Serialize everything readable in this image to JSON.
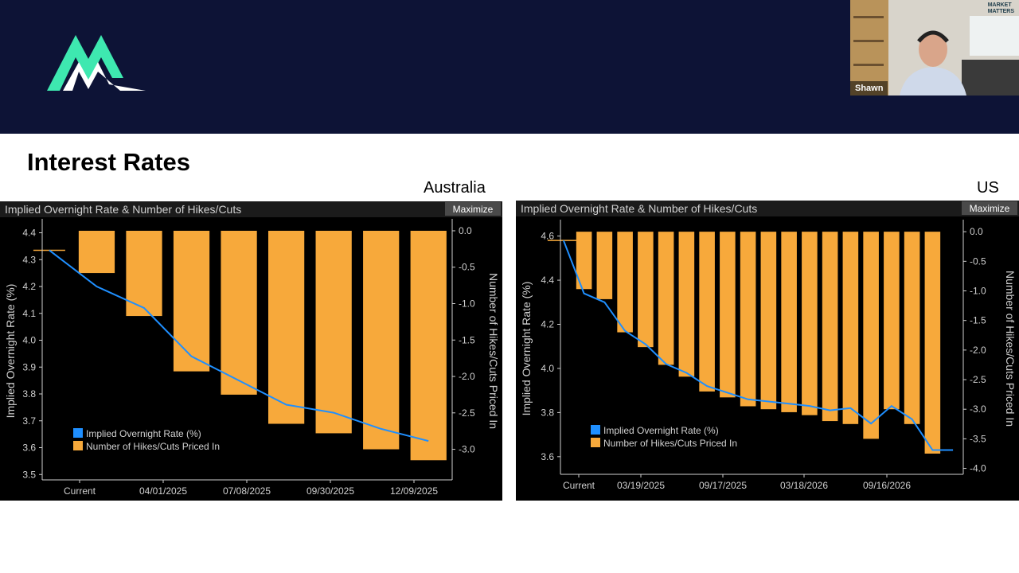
{
  "page": {
    "title": "Interest Rates"
  },
  "video": {
    "name": "Shawn",
    "brand_line1": "MARKET",
    "brand_line2": "MATTERS"
  },
  "colors": {
    "banner": "#0d1336",
    "bar": "#f7a93b",
    "line": "#1f8fff",
    "logo": "#3ee8b0"
  },
  "chart_data": [
    {
      "region": "Australia",
      "type": "bar+line",
      "title": "Implied Overnight Rate & Number of Hikes/Cuts",
      "button": "Maximize",
      "ylabel_left": "Implied Overnight Rate (%)",
      "ylabel_right": "Number of Hikes/Cuts Priced In",
      "x_tick_labels": [
        "Current",
        "04/01/2025",
        "07/08/2025",
        "09/30/2025",
        "12/09/2025"
      ],
      "y_left_ticks": [
        4.4,
        4.3,
        4.2,
        4.1,
        4.0,
        3.9,
        3.8,
        3.7,
        3.6,
        3.5
      ],
      "y_right_ticks": [
        0.0,
        -0.5,
        -1.0,
        -1.5,
        -2.0,
        -2.5,
        -3.0
      ],
      "ylim_left": [
        3.48,
        4.44
      ],
      "ylim_right": [
        -3.42,
        0.12
      ],
      "series": [
        {
          "name": "Implied Overnight Rate (%)",
          "kind": "line",
          "x": [
            0,
            1,
            2,
            3,
            4,
            5,
            6,
            7,
            8
          ],
          "values": [
            4.335,
            4.2,
            4.12,
            3.94,
            3.85,
            3.76,
            3.73,
            3.67,
            3.625
          ]
        },
        {
          "name": "Number of Hikes/Cuts Priced In",
          "kind": "bar",
          "x": [
            1,
            2,
            3,
            4,
            5,
            6,
            7,
            8
          ],
          "values": [
            -0.58,
            -1.17,
            -1.93,
            -2.25,
            -2.65,
            -2.78,
            -3.0,
            -3.15
          ]
        }
      ],
      "legend": [
        "Implied Overnight Rate (%)",
        "Number of Hikes/Cuts Priced In"
      ],
      "legend_position": "bottom-left"
    },
    {
      "region": "US",
      "type": "bar+line",
      "title": "Implied Overnight Rate & Number of Hikes/Cuts",
      "button": "Maximize",
      "ylabel_left": "Implied Overnight Rate (%)",
      "ylabel_right": "Number of Hikes/Cuts Priced In",
      "x_tick_labels": [
        "Current",
        "03/19/2025",
        "09/17/2025",
        "03/18/2026",
        "09/16/2026"
      ],
      "y_left_ticks": [
        4.6,
        4.4,
        4.2,
        4.0,
        3.8,
        3.6
      ],
      "y_right_ticks": [
        0.0,
        -0.5,
        -1.0,
        -1.5,
        -2.0,
        -2.5,
        -3.0,
        -3.5,
        -4.0
      ],
      "ylim_left": [
        3.52,
        4.66
      ],
      "ylim_right": [
        -4.1,
        0.15
      ],
      "series": [
        {
          "name": "Implied Overnight Rate (%)",
          "kind": "line",
          "x": [
            0,
            1,
            2,
            3,
            4,
            5,
            6,
            7,
            8,
            9,
            10,
            11,
            12,
            13,
            14,
            15,
            16,
            17,
            18,
            19
          ],
          "values": [
            4.58,
            4.34,
            4.3,
            4.17,
            4.11,
            4.02,
            3.98,
            3.92,
            3.89,
            3.86,
            3.85,
            3.84,
            3.83,
            3.81,
            3.82,
            3.75,
            3.83,
            3.77,
            3.63,
            3.63
          ]
        },
        {
          "name": "Number of Hikes/Cuts Priced In",
          "kind": "bar",
          "x": [
            1,
            2,
            3,
            4,
            5,
            6,
            7,
            8,
            9,
            10,
            11,
            12,
            13,
            14,
            15,
            16,
            17,
            18
          ],
          "values": [
            -0.97,
            -1.14,
            -1.7,
            -1.95,
            -2.25,
            -2.45,
            -2.7,
            -2.8,
            -2.95,
            -3.0,
            -3.05,
            -3.1,
            -3.2,
            -3.25,
            -3.5,
            -3.0,
            -3.25,
            -3.75
          ]
        }
      ],
      "legend": [
        "Implied Overnight Rate (%)",
        "Number of Hikes/Cuts Priced In"
      ],
      "legend_position": "bottom-left"
    }
  ]
}
